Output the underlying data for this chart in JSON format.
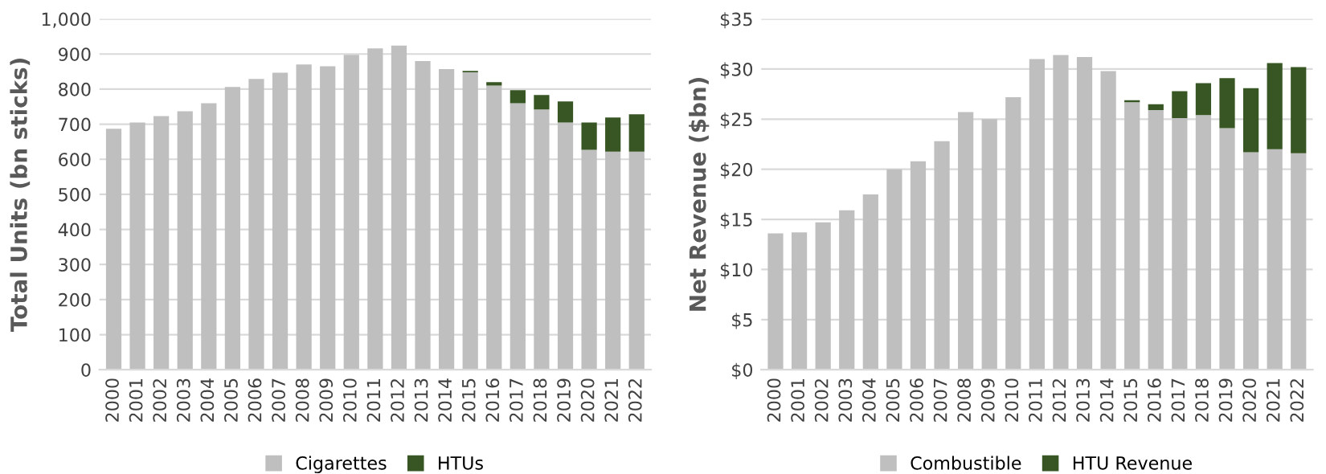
{
  "chart_data": [
    {
      "type": "bar",
      "stacked": true,
      "ylabel": "Total Units (bn sticks)",
      "categories": [
        "2000",
        "2001",
        "2002",
        "2003",
        "2004",
        "2005",
        "2006",
        "2007",
        "2008",
        "2009",
        "2010",
        "2011",
        "2012",
        "2013",
        "2014",
        "2015",
        "2016",
        "2017",
        "2018",
        "2019",
        "2020",
        "2021",
        "2022"
      ],
      "series": [
        {
          "name": "Cigarettes",
          "color": "#bfbfbf",
          "values": [
            687,
            705,
            723,
            737,
            760,
            806,
            829,
            847,
            870,
            865,
            898,
            916,
            924,
            880,
            857,
            848,
            810,
            760,
            742,
            705,
            627,
            622,
            622
          ]
        },
        {
          "name": "HTUs",
          "color": "#375623",
          "values": [
            null,
            null,
            null,
            null,
            null,
            null,
            null,
            null,
            null,
            null,
            null,
            null,
            null,
            null,
            null,
            4,
            10,
            37,
            41,
            60,
            78,
            97,
            106
          ]
        }
      ],
      "ylim": [
        0,
        1000
      ],
      "yticks": [
        0,
        100,
        200,
        300,
        400,
        500,
        600,
        700,
        800,
        900,
        {
          "value": 1000,
          "label": "1,000"
        }
      ],
      "grid": "y",
      "legend": "bottom"
    },
    {
      "type": "bar",
      "stacked": true,
      "ylabel": "Net Revenue ($bn)",
      "categories": [
        "2000",
        "2001",
        "2002",
        "2003",
        "2004",
        "2005",
        "2006",
        "2007",
        "2008",
        "2009",
        "2010",
        "2011",
        "2012",
        "2013",
        "2014",
        "2015",
        "2016",
        "2017",
        "2018",
        "2019",
        "2020",
        "2021",
        "2022"
      ],
      "series": [
        {
          "name": "Combustible",
          "color": "#bfbfbf",
          "values": [
            13.6,
            13.7,
            14.7,
            15.9,
            17.5,
            20.0,
            20.8,
            22.8,
            25.7,
            25.0,
            27.2,
            31.0,
            31.4,
            31.2,
            29.8,
            26.7,
            25.9,
            25.1,
            25.4,
            24.1,
            21.7,
            22.0,
            21.6
          ]
        },
        {
          "name": "HTU Revenue",
          "color": "#375623",
          "values": [
            null,
            null,
            null,
            null,
            null,
            null,
            null,
            null,
            null,
            null,
            null,
            null,
            null,
            null,
            null,
            0.2,
            0.6,
            2.7,
            3.2,
            5.0,
            6.4,
            8.6,
            8.6
          ]
        }
      ],
      "ylim": [
        0,
        35
      ],
      "yticks": [
        {
          "value": 0,
          "label": "$0"
        },
        {
          "value": 5,
          "label": "$5"
        },
        {
          "value": 10,
          "label": "$10"
        },
        {
          "value": 15,
          "label": "$15"
        },
        {
          "value": 20,
          "label": "$20"
        },
        {
          "value": 25,
          "label": "$25"
        },
        {
          "value": 30,
          "label": "$30"
        },
        {
          "value": 35,
          "label": "$35"
        }
      ],
      "grid": "y",
      "legend": "bottom"
    }
  ]
}
